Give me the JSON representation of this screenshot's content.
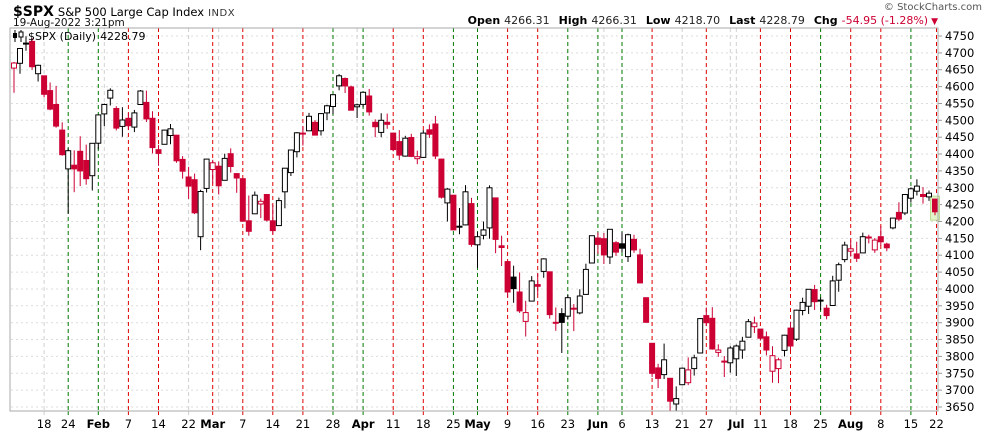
{
  "header": {
    "symbol": "$SPX",
    "name": "S&P 500 Large Cap Index",
    "exchange": "INDX",
    "datetime": "19-Aug-2022 3:21pm",
    "copyright": "© StockCharts.com"
  },
  "quote": {
    "open_label": "Open",
    "open_value": "4266.31",
    "high_label": "High",
    "high_value": "4266.31",
    "low_label": "Low",
    "low_value": "4218.70",
    "last_label": "Last",
    "last_value": "4228.79",
    "chg_label": "Chg",
    "chg_value": "-54.95 (-1.28%)",
    "direction": "down"
  },
  "legend": {
    "label": "$SPX (Daily)",
    "value": "4228.79"
  },
  "colors": {
    "candle_up": "#000000",
    "candle_down": "#cc0033",
    "hollow_fill": "#ffffff",
    "grid_h": "#dcdcdc",
    "vline": {
      "red": "#e00000",
      "green": "#007a00",
      "gray": "#d0d0d0"
    },
    "highlight_fill": "#e3f5c8",
    "highlight_border": "#bade96",
    "border": "#aaaaaa",
    "axis_text": "#000000",
    "change_red": "#cc0033"
  },
  "chart_data": {
    "type": "candlestick",
    "title": "$SPX (Daily)",
    "symbol": "$SPX",
    "timeframe": "Daily",
    "last_value": 4228.79,
    "y_axis": {
      "min": 3650,
      "max": 4750,
      "step": 50,
      "side": "right"
    },
    "x_range": "Jan 10, 2022 - Aug 19, 2022",
    "grid": true,
    "first_prev_close": 4677,
    "vlines": [
      {
        "i": 5,
        "color": "gray",
        "label": "18",
        "bold": false
      },
      {
        "i": 9,
        "color": "green",
        "label": "24",
        "bold": false
      },
      {
        "i": 14,
        "color": "green",
        "label": "Feb",
        "bold": true
      },
      {
        "i": 15,
        "color": "gray",
        "label": "",
        "bold": false
      },
      {
        "i": 19,
        "color": "red",
        "label": "7",
        "bold": false
      },
      {
        "i": 24,
        "color": "red",
        "label": "14",
        "bold": false
      },
      {
        "i": 29,
        "color": "gray",
        "label": "22",
        "bold": false
      },
      {
        "i": 33,
        "color": "red",
        "label": "Mar",
        "bold": true
      },
      {
        "i": 34,
        "color": "gray",
        "label": "",
        "bold": false
      },
      {
        "i": 38,
        "color": "red",
        "label": "7",
        "bold": false
      },
      {
        "i": 43,
        "color": "red",
        "label": "14",
        "bold": false
      },
      {
        "i": 48,
        "color": "red",
        "label": "21",
        "bold": false
      },
      {
        "i": 53,
        "color": "green",
        "label": "28",
        "bold": false
      },
      {
        "i": 57,
        "color": "gray",
        "label": "",
        "bold": false
      },
      {
        "i": 58,
        "color": "green",
        "label": "Apr",
        "bold": true
      },
      {
        "i": 63,
        "color": "red",
        "label": "11",
        "bold": false
      },
      {
        "i": 68,
        "color": "red",
        "label": "18",
        "bold": false
      },
      {
        "i": 73,
        "color": "green",
        "label": "25",
        "bold": false
      },
      {
        "i": 77,
        "color": "green",
        "label": "May",
        "bold": true
      },
      {
        "i": 82,
        "color": "red",
        "label": "9",
        "bold": false
      },
      {
        "i": 87,
        "color": "red",
        "label": "16",
        "bold": false
      },
      {
        "i": 92,
        "color": "green",
        "label": "23",
        "bold": false
      },
      {
        "i": 97,
        "color": "green",
        "label": "Jun",
        "bold": true
      },
      {
        "i": 98,
        "color": "gray",
        "label": "",
        "bold": false
      },
      {
        "i": 101,
        "color": "green",
        "label": "6",
        "bold": false
      },
      {
        "i": 106,
        "color": "red",
        "label": "13",
        "bold": false
      },
      {
        "i": 111,
        "color": "gray",
        "label": "21",
        "bold": false
      },
      {
        "i": 115,
        "color": "red",
        "label": "27",
        "bold": false
      },
      {
        "i": 119,
        "color": "gray",
        "label": "",
        "bold": false
      },
      {
        "i": 120,
        "color": "gray",
        "label": "Jul",
        "bold": true
      },
      {
        "i": 124,
        "color": "red",
        "label": "11",
        "bold": false
      },
      {
        "i": 129,
        "color": "red",
        "label": "18",
        "bold": false
      },
      {
        "i": 134,
        "color": "green",
        "label": "25",
        "bold": false
      },
      {
        "i": 139,
        "color": "red",
        "label": "Aug",
        "bold": true
      },
      {
        "i": 144,
        "color": "red",
        "label": "8",
        "bold": false
      },
      {
        "i": 149,
        "color": "green",
        "label": "15",
        "bold": false
      },
      {
        "i": 154,
        "color": "red",
        "label": "22",
        "bold": false
      }
    ],
    "candles": [
      [
        "Jan 10",
        4655,
        4673,
        4582,
        4670
      ],
      [
        "Jan 11",
        4669,
        4714,
        4638,
        4713
      ],
      [
        "Jan 12",
        4729,
        4749,
        4706,
        4726
      ],
      [
        "Jan 13",
        4734,
        4744,
        4650,
        4659
      ],
      [
        "Jan 14",
        4638,
        4665,
        4615,
        4663
      ],
      [
        "Jan 18",
        4632,
        4632,
        4568,
        4577
      ],
      [
        "Jan 19",
        4588,
        4612,
        4530,
        4533
      ],
      [
        "Jan 20",
        4547,
        4602,
        4478,
        4483
      ],
      [
        "Jan 21",
        4471,
        4494,
        4395,
        4398
      ],
      [
        "Jan 24",
        4356,
        4417,
        4223,
        4410
      ],
      [
        "Jan 25",
        4367,
        4411,
        4287,
        4356
      ],
      [
        "Jan 26",
        4408,
        4453,
        4305,
        4350
      ],
      [
        "Jan 27",
        4381,
        4428,
        4309,
        4327
      ],
      [
        "Jan 28",
        4336,
        4432,
        4292,
        4432
      ],
      [
        "Jan 31",
        4432,
        4516,
        4414,
        4516
      ],
      [
        "Feb 1",
        4519,
        4550,
        4483,
        4547
      ],
      [
        "Feb 2",
        4566,
        4595,
        4544,
        4589
      ],
      [
        "Feb 3",
        4535,
        4542,
        4470,
        4477
      ],
      [
        "Feb 4",
        4482,
        4539,
        4451,
        4501
      ],
      [
        "Feb 7",
        4506,
        4521,
        4471,
        4484
      ],
      [
        "Feb 8",
        4480,
        4531,
        4465,
        4522
      ],
      [
        "Feb 9",
        4547,
        4590,
        4547,
        4587
      ],
      [
        "Feb 10",
        4553,
        4588,
        4495,
        4504
      ],
      [
        "Feb 11",
        4506,
        4527,
        4402,
        4419
      ],
      [
        "Feb 14",
        4413,
        4427,
        4365,
        4402
      ],
      [
        "Feb 15",
        4429,
        4472,
        4429,
        4471
      ],
      [
        "Feb 16",
        4455,
        4489,
        4429,
        4475
      ],
      [
        "Feb 17",
        4456,
        4456,
        4374,
        4380
      ],
      [
        "Feb 18",
        4384,
        4394,
        4327,
        4349
      ],
      [
        "Feb 22",
        4332,
        4362,
        4267,
        4305
      ],
      [
        "Feb 23",
        4324,
        4342,
        4222,
        4226
      ],
      [
        "Feb 24",
        4155,
        4294,
        4115,
        4289
      ],
      [
        "Feb 25",
        4298,
        4385,
        4286,
        4385
      ],
      [
        "Feb 28",
        4354,
        4383,
        4313,
        4374
      ],
      [
        "Mar 1",
        4364,
        4378,
        4280,
        4306
      ],
      [
        "Mar 2",
        4322,
        4401,
        4322,
        4387
      ],
      [
        "Mar 3",
        4401,
        4417,
        4345,
        4363
      ],
      [
        "Mar 4",
        4342,
        4343,
        4285,
        4329
      ],
      [
        "Mar 7",
        4327,
        4327,
        4199,
        4201
      ],
      [
        "Mar 8",
        4202,
        4277,
        4158,
        4171
      ],
      [
        "Mar 9",
        4223,
        4289,
        4223,
        4278
      ],
      [
        "Mar 10",
        4252,
        4268,
        4210,
        4260
      ],
      [
        "Mar 11",
        4280,
        4281,
        4200,
        4204
      ],
      [
        "Mar 14",
        4202,
        4248,
        4162,
        4173
      ],
      [
        "Mar 15",
        4188,
        4271,
        4188,
        4262
      ],
      [
        "Mar 16",
        4288,
        4358,
        4239,
        4358
      ],
      [
        "Mar 17",
        4345,
        4412,
        4335,
        4412
      ],
      [
        "Mar 18",
        4407,
        4465,
        4390,
        4463
      ],
      [
        "Mar 21",
        4462,
        4482,
        4425,
        4461
      ],
      [
        "Mar 22",
        4469,
        4522,
        4469,
        4512
      ],
      [
        "Mar 23",
        4494,
        4501,
        4456,
        4456
      ],
      [
        "Mar 24",
        4469,
        4521,
        4455,
        4520
      ],
      [
        "Mar 25",
        4522,
        4546,
        4501,
        4543
      ],
      [
        "Mar 28",
        4541,
        4576,
        4518,
        4576
      ],
      [
        "Mar 29",
        4602,
        4637,
        4589,
        4632
      ],
      [
        "Mar 30",
        4624,
        4627,
        4581,
        4602
      ],
      [
        "Mar 31",
        4599,
        4603,
        4530,
        4530
      ],
      [
        "Apr 1",
        4540,
        4549,
        4507,
        4546
      ],
      [
        "Apr 4",
        4547,
        4583,
        4539,
        4583
      ],
      [
        "Apr 5",
        4572,
        4593,
        4514,
        4525
      ],
      [
        "Apr 6",
        4494,
        4503,
        4450,
        4481
      ],
      [
        "Apr 7",
        4464,
        4521,
        4450,
        4500
      ],
      [
        "Apr 8",
        4494,
        4520,
        4475,
        4488
      ],
      [
        "Apr 11",
        4462,
        4464,
        4408,
        4413
      ],
      [
        "Apr 12",
        4437,
        4471,
        4382,
        4397
      ],
      [
        "Apr 13",
        4394,
        4454,
        4392,
        4447
      ],
      [
        "Apr 14",
        4449,
        4460,
        4391,
        4393
      ],
      [
        "Apr 18",
        4386,
        4410,
        4370,
        4392
      ],
      [
        "Apr 19",
        4390,
        4471,
        4390,
        4462
      ],
      [
        "Apr 20",
        4472,
        4488,
        4448,
        4459
      ],
      [
        "Apr 21",
        4489,
        4513,
        4385,
        4394
      ],
      [
        "Apr 22",
        4385,
        4386,
        4268,
        4272
      ],
      [
        "Apr 25",
        4255,
        4299,
        4200,
        4296
      ],
      [
        "Apr 26",
        4278,
        4278,
        4175,
        4175
      ],
      [
        "Apr 27",
        4186,
        4240,
        4162,
        4184
      ],
      [
        "Apr 28",
        4190,
        4308,
        4188,
        4288
      ],
      [
        "Apr 29",
        4253,
        4270,
        4125,
        4132
      ],
      [
        "May 2",
        4131,
        4169,
        4062,
        4155
      ],
      [
        "May 3",
        4159,
        4200,
        4147,
        4175
      ],
      [
        "May 4",
        4181,
        4307,
        4149,
        4300
      ],
      [
        "May 5",
        4270,
        4271,
        4106,
        4147
      ],
      [
        "May 6",
        4128,
        4158,
        4068,
        4123
      ],
      [
        "May 9",
        4081,
        4082,
        3975,
        3991
      ],
      [
        "May 10",
        4035,
        4069,
        3959,
        4001
      ],
      [
        "May 11",
        3991,
        4049,
        3929,
        3935
      ],
      [
        "May 12",
        3904,
        3965,
        3859,
        3930
      ],
      [
        "May 13",
        3964,
        4038,
        3964,
        4024
      ],
      [
        "May 16",
        4013,
        4046,
        3983,
        4008
      ],
      [
        "May 17",
        4052,
        4091,
        4033,
        4089
      ],
      [
        "May 18",
        4051,
        4051,
        3912,
        3924
      ],
      [
        "May 19",
        3899,
        3945,
        3876,
        3901
      ],
      [
        "May 20",
        3927,
        3943,
        3810,
        3901
      ],
      [
        "May 23",
        3919,
        3982,
        3909,
        3974
      ],
      [
        "May 24",
        3943,
        3955,
        3875,
        3941
      ],
      [
        "May 25",
        3929,
        3999,
        3925,
        3979
      ],
      [
        "May 26",
        3984,
        4075,
        3984,
        4058
      ],
      [
        "May 27",
        4077,
        4158,
        4077,
        4158
      ],
      [
        "May 31",
        4151,
        4168,
        4104,
        4132
      ],
      [
        "Jun 1",
        4149,
        4166,
        4074,
        4101
      ],
      [
        "Jun 2",
        4095,
        4177,
        4074,
        4177
      ],
      [
        "Jun 3",
        4137,
        4142,
        4098,
        4109
      ],
      [
        "Jun 6",
        4134,
        4168,
        4109,
        4121
      ],
      [
        "Jun 7",
        4096,
        4164,
        4080,
        4161
      ],
      [
        "Jun 8",
        4147,
        4161,
        4107,
        4116
      ],
      [
        "Jun 9",
        4101,
        4119,
        4017,
        4018
      ],
      [
        "Jun 10",
        3974,
        3975,
        3900,
        3901
      ],
      [
        "Jun 13",
        3839,
        3839,
        3739,
        3750
      ],
      [
        "Jun 14",
        3766,
        3778,
        3706,
        3735
      ],
      [
        "Jun 15",
        3746,
        3838,
        3733,
        3790
      ],
      [
        "Jun 16",
        3735,
        3736,
        3639,
        3667
      ],
      [
        "Jun 17",
        3659,
        3711,
        3637,
        3675
      ],
      [
        "Jun 21",
        3716,
        3767,
        3716,
        3765
      ],
      [
        "Jun 22",
        3722,
        3797,
        3715,
        3760
      ],
      [
        "Jun 23",
        3764,
        3805,
        3743,
        3796
      ],
      [
        "Jun 24",
        3810,
        3914,
        3810,
        3912
      ],
      [
        "Jun 27",
        3921,
        3945,
        3890,
        3900
      ],
      [
        "Jun 28",
        3913,
        3946,
        3820,
        3822
      ],
      [
        "Jun 29",
        3812,
        3836,
        3799,
        3819
      ],
      [
        "Jun 30",
        3786,
        3801,
        3739,
        3785
      ],
      [
        "Jul 1",
        3781,
        3830,
        3752,
        3825
      ],
      [
        "Jul 5",
        3793,
        3835,
        3742,
        3831
      ],
      [
        "Jul 6",
        3819,
        3858,
        3793,
        3845
      ],
      [
        "Jul 7",
        3857,
        3911,
        3857,
        3903
      ],
      [
        "Jul 8",
        3888,
        3918,
        3869,
        3899
      ],
      [
        "Jul 11",
        3881,
        3881,
        3847,
        3854
      ],
      [
        "Jul 12",
        3858,
        3874,
        3803,
        3819
      ],
      [
        "Jul 13",
        3756,
        3830,
        3722,
        3802
      ],
      [
        "Jul 14",
        3764,
        3796,
        3721,
        3790
      ],
      [
        "Jul 15",
        3818,
        3864,
        3800,
        3863
      ],
      [
        "Jul 18",
        3884,
        3903,
        3819,
        3831
      ],
      [
        "Jul 19",
        3851,
        3939,
        3846,
        3937
      ],
      [
        "Jul 20",
        3936,
        3974,
        3922,
        3960
      ],
      [
        "Jul 21",
        3949,
        4000,
        3926,
        3999
      ],
      [
        "Jul 22",
        3998,
        4012,
        3938,
        3962
      ],
      [
        "Jul 25",
        3965,
        3975,
        3937,
        3967
      ],
      [
        "Jul 26",
        3943,
        3953,
        3910,
        3921
      ],
      [
        "Jul 27",
        3951,
        4039,
        3951,
        4024
      ],
      [
        "Jul 28",
        4026,
        4078,
        3992,
        4072
      ],
      [
        "Jul 29",
        4087,
        4140,
        4079,
        4130
      ],
      [
        "Aug 1",
        4112,
        4144,
        4096,
        4119
      ],
      [
        "Aug 2",
        4104,
        4140,
        4080,
        4091
      ],
      [
        "Aug 3",
        4107,
        4167,
        4107,
        4155
      ],
      [
        "Aug 4",
        4154,
        4161,
        4135,
        4152
      ],
      [
        "Aug 5",
        4116,
        4151,
        4107,
        4145
      ],
      [
        "Aug 8",
        4155,
        4186,
        4128,
        4140
      ],
      [
        "Aug 9",
        4133,
        4137,
        4112,
        4122
      ],
      [
        "Aug 10",
        4181,
        4211,
        4177,
        4210
      ],
      [
        "Aug 11",
        4227,
        4257,
        4201,
        4207
      ],
      [
        "Aug 12",
        4225,
        4280,
        4219,
        4280
      ],
      [
        "Aug 15",
        4269,
        4301,
        4256,
        4297
      ],
      [
        "Aug 16",
        4290,
        4325,
        4277,
        4305
      ],
      [
        "Aug 17",
        4280,
        4302,
        4253,
        4274
      ],
      [
        "Aug 18",
        4273,
        4292,
        4261,
        4284
      ],
      [
        "Aug 19",
        4266.31,
        4266.31,
        4218.7,
        4228.79
      ]
    ]
  }
}
